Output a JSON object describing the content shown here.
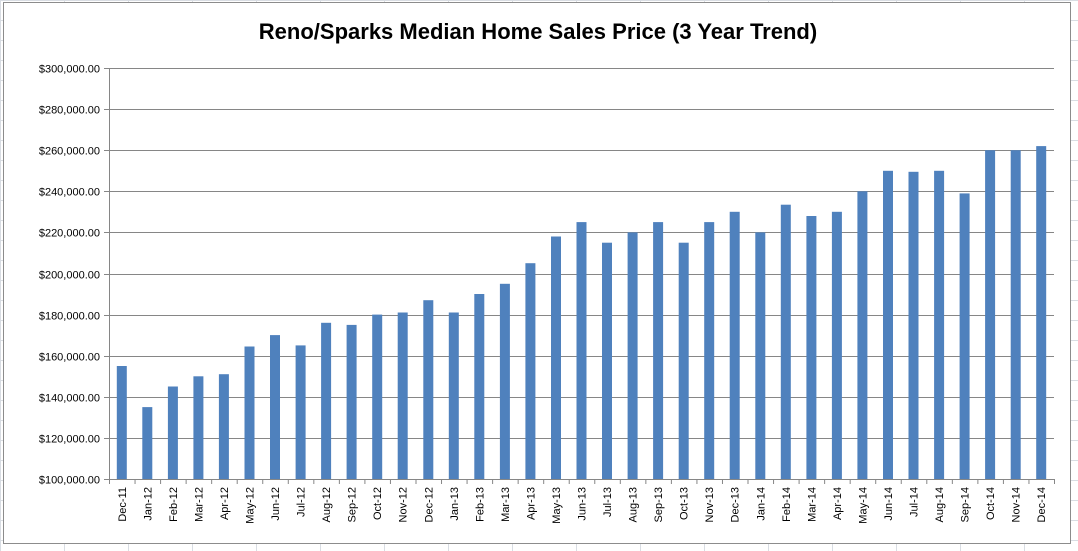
{
  "chart_data": {
    "type": "bar",
    "title": "Reno/Sparks Median Home Sales Price (3 Year Trend)",
    "xlabel": "",
    "ylabel": "",
    "ylim": [
      100000,
      300000
    ],
    "y_ticks": [
      100000,
      120000,
      140000,
      160000,
      180000,
      200000,
      220000,
      240000,
      260000,
      280000,
      300000
    ],
    "y_tick_labels": [
      "$100,000.00",
      "$120,000.00",
      "$140,000.00",
      "$160,000.00",
      "$180,000.00",
      "$200,000.00",
      "$220,000.00",
      "$240,000.00",
      "$260,000.00",
      "$280,000.00",
      "$300,000.00"
    ],
    "grid": true,
    "legend": "none",
    "bar_color": "#4f81bd",
    "categories": [
      "Dec-11",
      "Jan-12",
      "Feb-12",
      "Mar-12",
      "Apr-12",
      "May-12",
      "Jun-12",
      "Jul-12",
      "Aug-12",
      "Sep-12",
      "Oct-12",
      "Nov-12",
      "Dec-12",
      "Jan-13",
      "Feb-13",
      "Mar-13",
      "Apr-13",
      "May-13",
      "Jun-13",
      "Jul-13",
      "Aug-13",
      "Sep-13",
      "Oct-13",
      "Nov-13",
      "Dec-13",
      "Jan-14",
      "Feb-14",
      "Mar-14",
      "Apr-14",
      "May-14",
      "Jun-14",
      "Jul-14",
      "Aug-14",
      "Sep-14",
      "Oct-14",
      "Nov-14",
      "Dec-14"
    ],
    "values": [
      155000,
      135000,
      145000,
      150000,
      151000,
      164500,
      170000,
      165000,
      176000,
      175000,
      180000,
      181000,
      187000,
      181000,
      190000,
      195000,
      205000,
      218000,
      225000,
      215000,
      220000,
      225000,
      215000,
      225000,
      230000,
      220000,
      233500,
      228000,
      230000,
      240000,
      250000,
      249500,
      250000,
      239000,
      260000,
      260000,
      262000
    ]
  }
}
